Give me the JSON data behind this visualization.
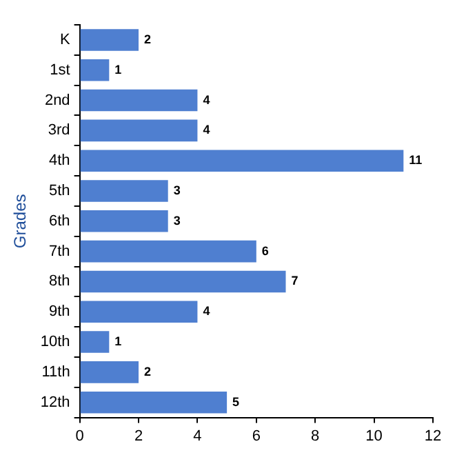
{
  "chart_data": {
    "type": "bar",
    "orientation": "horizontal",
    "ylabel": "Grades",
    "categories": [
      "K",
      "1st",
      "2nd",
      "3rd",
      "4th",
      "5th",
      "6th",
      "7th",
      "8th",
      "9th",
      "10th",
      "11th",
      "12th"
    ],
    "values": [
      2,
      1,
      4,
      4,
      11,
      3,
      3,
      6,
      7,
      4,
      1,
      2,
      5
    ],
    "color": "#4f7fd0",
    "xlim": [
      0,
      12
    ],
    "xticks": [
      0,
      2,
      4,
      6,
      8,
      10,
      12
    ],
    "grid": false,
    "legend": false,
    "data_labels": true
  }
}
